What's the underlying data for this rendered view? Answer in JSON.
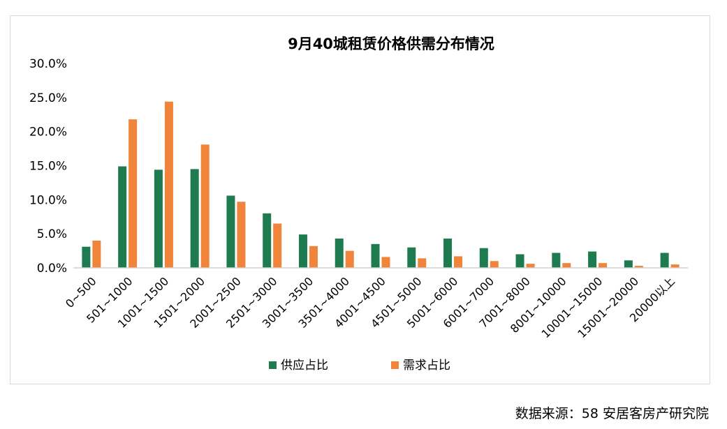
{
  "source_text": "数据来源：58 安居客房产研究院",
  "chart_data": {
    "type": "bar",
    "title": "9月40城租赁价格供需分布情况",
    "xlabel": "",
    "ylabel": "",
    "ylim": [
      0,
      30
    ],
    "yticks": [
      "0.0%",
      "5.0%",
      "10.0%",
      "15.0%",
      "20.0%",
      "25.0%",
      "30.0%"
    ],
    "grid": false,
    "legend_position": "bottom",
    "categories": [
      "0~500",
      "501~1000",
      "1001~1500",
      "1501~2000",
      "2001~2500",
      "2501~3000",
      "3001~3500",
      "3501~4000",
      "4001~4500",
      "4501~5000",
      "5001~6000",
      "6001~7000",
      "7001~8000",
      "8001~10000",
      "10001~15000",
      "15001~20000",
      "20000以上"
    ],
    "series": [
      {
        "name": "供应占比",
        "color": "#1e7b4f",
        "values": [
          3.1,
          14.9,
          14.4,
          14.5,
          10.6,
          8.0,
          4.9,
          4.3,
          3.5,
          3.0,
          4.3,
          2.9,
          2.0,
          2.2,
          2.4,
          1.1,
          2.2
        ]
      },
      {
        "name": "需求占比",
        "color": "#f0843a",
        "values": [
          4.0,
          21.8,
          24.4,
          18.1,
          9.7,
          6.5,
          3.2,
          2.5,
          1.6,
          1.4,
          1.7,
          1.0,
          0.6,
          0.7,
          0.7,
          0.3,
          0.5
        ]
      }
    ]
  }
}
